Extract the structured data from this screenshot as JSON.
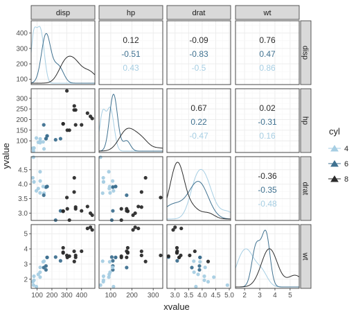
{
  "chart_data": {
    "type": "scatter",
    "variables": [
      "disp",
      "hp",
      "drat",
      "wt"
    ],
    "xlabel": "xvalue",
    "ylabel": "yvalue",
    "legend": {
      "title": "cyl",
      "placement": "right",
      "levels": [
        "4",
        "6",
        "8"
      ],
      "colors": {
        "4": "#a6cee3",
        "6": "#3f7190",
        "8": "#2b2b2b"
      }
    },
    "grid": true,
    "axes": {
      "disp": {
        "x_range": [
          60,
          490
        ],
        "x_ticks": [
          100,
          200,
          300,
          400
        ],
        "y_range": [
          65,
          480
        ],
        "y_ticks": [
          100,
          200,
          300,
          400
        ]
      },
      "hp": {
        "x_range": [
          45,
          345
        ],
        "x_ticks": [
          100,
          200,
          300
        ],
        "y_range": [
          45,
          345
        ],
        "y_ticks": [
          100,
          150,
          200,
          250,
          300
        ]
      },
      "drat": {
        "x_range": [
          2.7,
          5.05
        ],
        "x_ticks": [
          3.0,
          3.5,
          4.0,
          4.5,
          5.0
        ],
        "y_range": [
          2.75,
          4.95
        ],
        "y_ticks": [
          3.0,
          3.5,
          4.0,
          4.5
        ]
      },
      "wt": {
        "x_range": [
          1.4,
          5.6
        ],
        "x_ticks": [
          2,
          3,
          4,
          5
        ],
        "y_range": [
          1.4,
          5.6
        ],
        "y_ticks": [
          2,
          3,
          4,
          5
        ]
      }
    },
    "correlations": {
      "disp_hp": {
        "4": "0.43",
        "6": "-0.51",
        "8": "0.12"
      },
      "disp_drat": {
        "4": "-0.5",
        "6": "-0.83",
        "8": "-0.09"
      },
      "disp_wt": {
        "4": "0.86",
        "6": "0.47",
        "8": "0.76"
      },
      "hp_drat": {
        "4": "-0.47",
        "6": "0.22",
        "8": "0.67"
      },
      "hp_wt": {
        "4": "0.16",
        "6": "-0.31",
        "8": "0.02"
      },
      "drat_wt": {
        "4": "-0.48",
        "6": "-0.35",
        "8": "-0.36"
      }
    },
    "observations": [
      {
        "cyl": "6",
        "disp": 160,
        "hp": 110,
        "drat": 3.9,
        "wt": 2.62
      },
      {
        "cyl": "6",
        "disp": 160,
        "hp": 110,
        "drat": 3.9,
        "wt": 2.875
      },
      {
        "cyl": "4",
        "disp": 108,
        "hp": 93,
        "drat": 3.85,
        "wt": 2.32
      },
      {
        "cyl": "6",
        "disp": 258,
        "hp": 110,
        "drat": 3.08,
        "wt": 3.215
      },
      {
        "cyl": "8",
        "disp": 360,
        "hp": 175,
        "drat": 3.15,
        "wt": 3.44
      },
      {
        "cyl": "6",
        "disp": 225,
        "hp": 105,
        "drat": 2.76,
        "wt": 3.46
      },
      {
        "cyl": "8",
        "disp": 360,
        "hp": 245,
        "drat": 3.21,
        "wt": 3.57
      },
      {
        "cyl": "4",
        "disp": 146.7,
        "hp": 62,
        "drat": 3.69,
        "wt": 3.19
      },
      {
        "cyl": "4",
        "disp": 140.8,
        "hp": 95,
        "drat": 3.92,
        "wt": 3.15
      },
      {
        "cyl": "6",
        "disp": 167.6,
        "hp": 123,
        "drat": 3.92,
        "wt": 3.44
      },
      {
        "cyl": "6",
        "disp": 167.6,
        "hp": 123,
        "drat": 3.92,
        "wt": 3.44
      },
      {
        "cyl": "8",
        "disp": 275.8,
        "hp": 180,
        "drat": 3.07,
        "wt": 4.07
      },
      {
        "cyl": "8",
        "disp": 275.8,
        "hp": 180,
        "drat": 3.07,
        "wt": 3.73
      },
      {
        "cyl": "8",
        "disp": 275.8,
        "hp": 180,
        "drat": 3.07,
        "wt": 3.78
      },
      {
        "cyl": "8",
        "disp": 472,
        "hp": 205,
        "drat": 2.93,
        "wt": 5.25
      },
      {
        "cyl": "8",
        "disp": 460,
        "hp": 215,
        "drat": 3.0,
        "wt": 5.424
      },
      {
        "cyl": "8",
        "disp": 440,
        "hp": 230,
        "drat": 3.23,
        "wt": 5.345
      },
      {
        "cyl": "4",
        "disp": 78.7,
        "hp": 66,
        "drat": 4.08,
        "wt": 2.2
      },
      {
        "cyl": "4",
        "disp": 75.7,
        "hp": 52,
        "drat": 4.93,
        "wt": 1.615
      },
      {
        "cyl": "4",
        "disp": 71.1,
        "hp": 65,
        "drat": 4.22,
        "wt": 1.835
      },
      {
        "cyl": "4",
        "disp": 120.1,
        "hp": 97,
        "drat": 3.7,
        "wt": 2.465
      },
      {
        "cyl": "8",
        "disp": 318,
        "hp": 150,
        "drat": 2.76,
        "wt": 3.52
      },
      {
        "cyl": "8",
        "disp": 304,
        "hp": 150,
        "drat": 3.15,
        "wt": 3.435
      },
      {
        "cyl": "8",
        "disp": 350,
        "hp": 245,
        "drat": 3.73,
        "wt": 3.84
      },
      {
        "cyl": "8",
        "disp": 400,
        "hp": 175,
        "drat": 3.08,
        "wt": 3.845
      },
      {
        "cyl": "4",
        "disp": 79,
        "hp": 66,
        "drat": 4.08,
        "wt": 1.935
      },
      {
        "cyl": "4",
        "disp": 120.3,
        "hp": 91,
        "drat": 4.43,
        "wt": 2.14
      },
      {
        "cyl": "4",
        "disp": 95.1,
        "hp": 113,
        "drat": 3.77,
        "wt": 1.513
      },
      {
        "cyl": "8",
        "disp": 351,
        "hp": 264,
        "drat": 4.22,
        "wt": 3.17
      },
      {
        "cyl": "6",
        "disp": 145,
        "hp": 175,
        "drat": 3.62,
        "wt": 2.77
      },
      {
        "cyl": "8",
        "disp": 301,
        "hp": 335,
        "drat": 3.54,
        "wt": 3.57
      },
      {
        "cyl": "4",
        "disp": 121,
        "hp": 109,
        "drat": 4.11,
        "wt": 2.78
      }
    ]
  }
}
